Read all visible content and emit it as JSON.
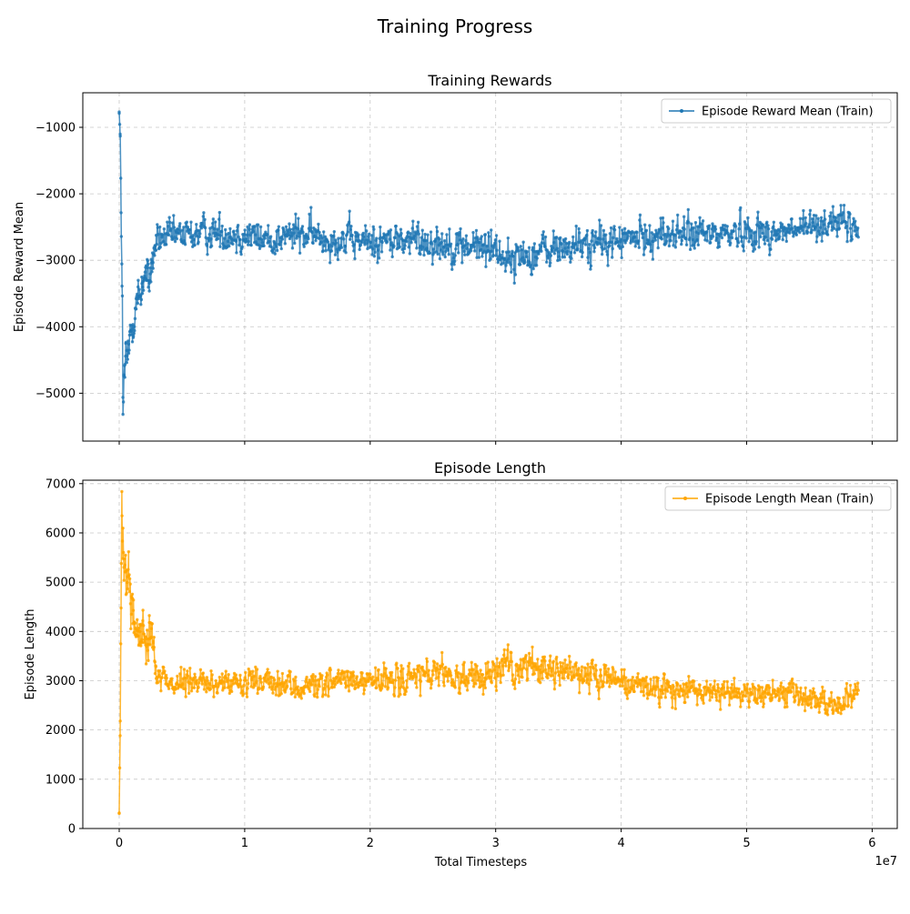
{
  "figure": {
    "title": "Training Progress"
  },
  "colors": {
    "reward": "#1f77b4",
    "length": "#ffa500"
  },
  "chart_data": [
    {
      "type": "line",
      "title": "Training Rewards",
      "xlabel": "",
      "ylabel": "Episode Reward Mean",
      "xlim": [
        -2900000,
        62000000
      ],
      "ylim": [
        -5720,
        -480
      ],
      "x_scale_label": "",
      "xticks": [
        0,
        10000000,
        20000000,
        30000000,
        40000000,
        50000000,
        60000000
      ],
      "xtick_labels": [],
      "yticks": [
        -5000,
        -4000,
        -3000,
        -2000,
        -1000
      ],
      "ytick_labels": [
        "−5000",
        "−4000",
        "−3000",
        "−2000",
        "−1000"
      ],
      "grid": true,
      "legend_position": "top-right",
      "series": [
        {
          "name": "Episode Reward Mean (Train)",
          "color": "#1f77b4",
          "marker": "circle",
          "x_start": 0,
          "x_end": 58900000,
          "anchors": [
            [
              0,
              -760
            ],
            [
              80000,
              -1150
            ],
            [
              150000,
              -2250
            ],
            [
              250000,
              -3600
            ],
            [
              300000,
              -5450
            ],
            [
              400000,
              -4700
            ],
            [
              600000,
              -4500
            ],
            [
              800000,
              -4300
            ],
            [
              1000000,
              -4000
            ],
            [
              1300000,
              -3700
            ],
            [
              1700000,
              -3500
            ],
            [
              2000000,
              -3200
            ],
            [
              2400000,
              -3300
            ],
            [
              2700000,
              -2950
            ],
            [
              3000000,
              -2700
            ],
            [
              5000000,
              -2620
            ],
            [
              8000000,
              -2580
            ],
            [
              10000000,
              -2620
            ],
            [
              12000000,
              -2700
            ],
            [
              14000000,
              -2600
            ],
            [
              16000000,
              -2650
            ],
            [
              18000000,
              -2700
            ],
            [
              20000000,
              -2720
            ],
            [
              22000000,
              -2700
            ],
            [
              24000000,
              -2700
            ],
            [
              26000000,
              -2750
            ],
            [
              28000000,
              -2800
            ],
            [
              30000000,
              -2800
            ],
            [
              31000000,
              -3000
            ],
            [
              32000000,
              -2950
            ],
            [
              34000000,
              -2850
            ],
            [
              36000000,
              -2800
            ],
            [
              38000000,
              -2750
            ],
            [
              40000000,
              -2700
            ],
            [
              42000000,
              -2650
            ],
            [
              44000000,
              -2600
            ],
            [
              46000000,
              -2620
            ],
            [
              48000000,
              -2600
            ],
            [
              50000000,
              -2550
            ],
            [
              52000000,
              -2600
            ],
            [
              54000000,
              -2550
            ],
            [
              56000000,
              -2450
            ],
            [
              57000000,
              -2400
            ],
            [
              58900000,
              -2550
            ]
          ],
          "noise": [
            [
              0,
              40
            ],
            [
              300000,
              300
            ],
            [
              600000,
              300
            ],
            [
              2000000,
              250
            ],
            [
              3000000,
              220
            ],
            [
              20000000,
              230
            ],
            [
              29000000,
              250
            ],
            [
              31000000,
              250
            ],
            [
              38000000,
              230
            ],
            [
              50000000,
              220
            ],
            [
              58900000,
              200
            ]
          ]
        }
      ]
    },
    {
      "type": "line",
      "title": "Episode Length",
      "xlabel": "Total Timesteps",
      "ylabel": "Episode Length",
      "xlim": [
        -2900000,
        62000000
      ],
      "ylim": [
        0,
        7070
      ],
      "x_scale_label": "1e7",
      "xticks": [
        0,
        10000000,
        20000000,
        30000000,
        40000000,
        50000000,
        60000000
      ],
      "xtick_labels": [
        "0",
        "1",
        "2",
        "3",
        "4",
        "5",
        "6"
      ],
      "yticks": [
        0,
        1000,
        2000,
        3000,
        4000,
        5000,
        6000,
        7000
      ],
      "ytick_labels": [
        "0",
        "1000",
        "2000",
        "3000",
        "4000",
        "5000",
        "6000",
        "7000"
      ],
      "grid": true,
      "legend_position": "top-right",
      "series": [
        {
          "name": "Episode Length Mean (Train)",
          "color": "#ffa500",
          "marker": "circle",
          "x_start": 0,
          "x_end": 58900000,
          "anchors": [
            [
              0,
              330
            ],
            [
              80000,
              1900
            ],
            [
              150000,
              4500
            ],
            [
              200000,
              6700
            ],
            [
              300000,
              5500
            ],
            [
              500000,
              5100
            ],
            [
              800000,
              5000
            ],
            [
              1000000,
              4700
            ],
            [
              1300000,
              3900
            ],
            [
              1700000,
              4000
            ],
            [
              2000000,
              3900
            ],
            [
              2400000,
              4100
            ],
            [
              2700000,
              3800
            ],
            [
              3000000,
              3100
            ],
            [
              5000000,
              2950
            ],
            [
              8000000,
              2950
            ],
            [
              10000000,
              2900
            ],
            [
              12000000,
              2950
            ],
            [
              14000000,
              2850
            ],
            [
              16000000,
              2950
            ],
            [
              18000000,
              3000
            ],
            [
              20000000,
              2950
            ],
            [
              22000000,
              3000
            ],
            [
              24000000,
              3100
            ],
            [
              26000000,
              3050
            ],
            [
              28000000,
              3050
            ],
            [
              30000000,
              3200
            ],
            [
              32000000,
              3300
            ],
            [
              34000000,
              3250
            ],
            [
              36000000,
              3200
            ],
            [
              38000000,
              3150
            ],
            [
              40000000,
              2950
            ],
            [
              42000000,
              2850
            ],
            [
              44000000,
              2800
            ],
            [
              46000000,
              2800
            ],
            [
              48000000,
              2800
            ],
            [
              50000000,
              2750
            ],
            [
              52000000,
              2750
            ],
            [
              54000000,
              2700
            ],
            [
              56000000,
              2600
            ],
            [
              57000000,
              2500
            ],
            [
              58000000,
              2600
            ],
            [
              58900000,
              2800
            ]
          ],
          "noise": [
            [
              0,
              60
            ],
            [
              300000,
              500
            ],
            [
              1000000,
              450
            ],
            [
              2700000,
              350
            ],
            [
              3000000,
              230
            ],
            [
              20000000,
              250
            ],
            [
              30000000,
              300
            ],
            [
              36000000,
              280
            ],
            [
              40000000,
              250
            ],
            [
              58900000,
              230
            ]
          ]
        }
      ]
    }
  ]
}
